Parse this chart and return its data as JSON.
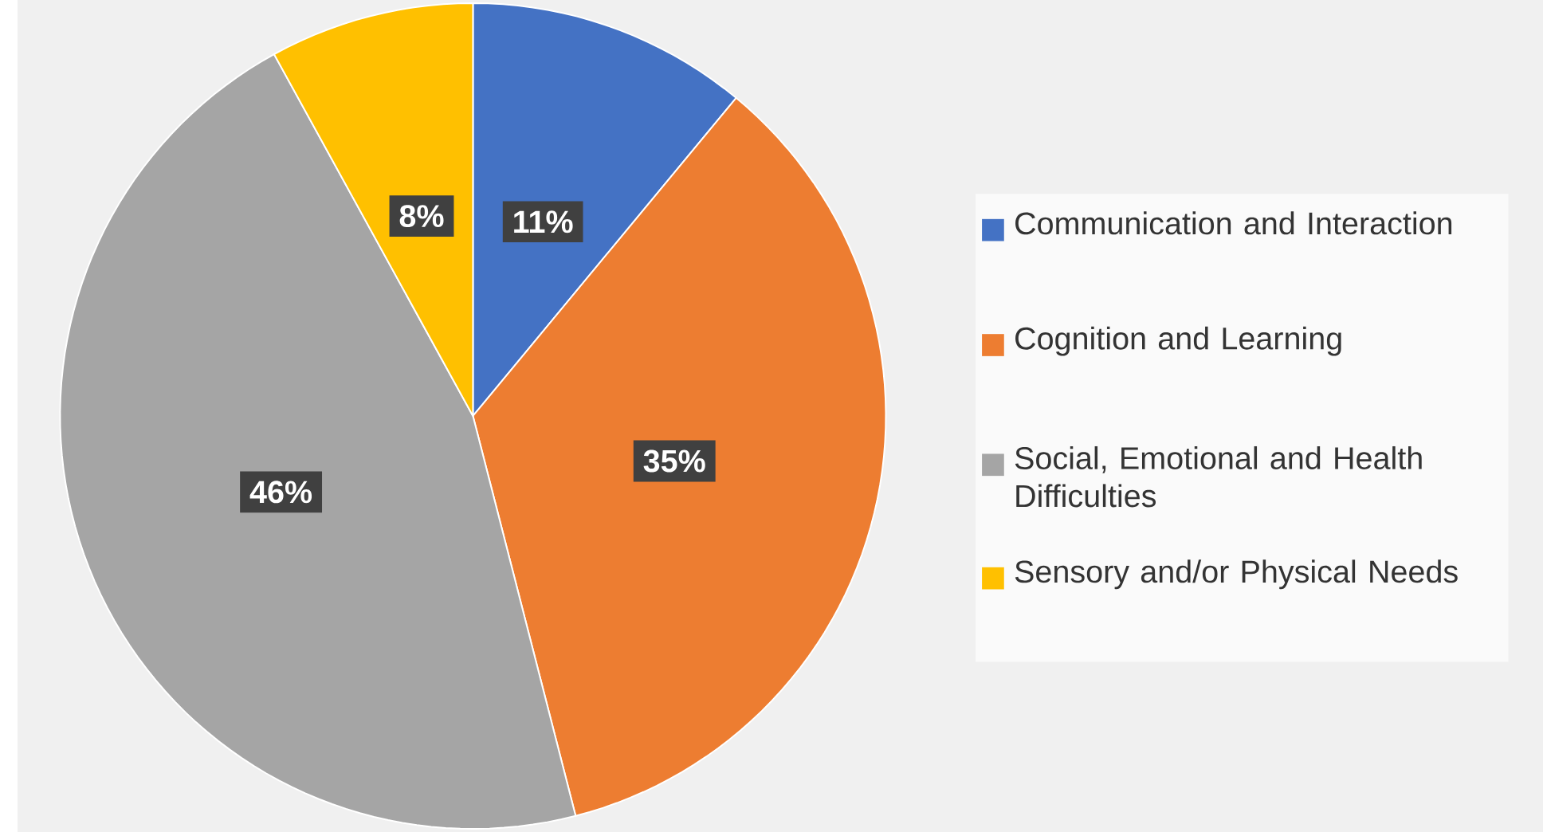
{
  "chart_data": {
    "type": "pie",
    "categories": [
      "Communication and Interaction",
      "Cognition and Learning",
      "Social, Emotional and Health Difficulties",
      "Sensory and/or Physical Needs"
    ],
    "values": [
      11,
      35,
      46,
      8
    ],
    "colors": [
      "#4472c4",
      "#ed7d31",
      "#a5a5a5",
      "#ffc000"
    ],
    "value_labels": [
      "11%",
      "35%",
      "46%",
      "8%"
    ],
    "legend": "right"
  }
}
